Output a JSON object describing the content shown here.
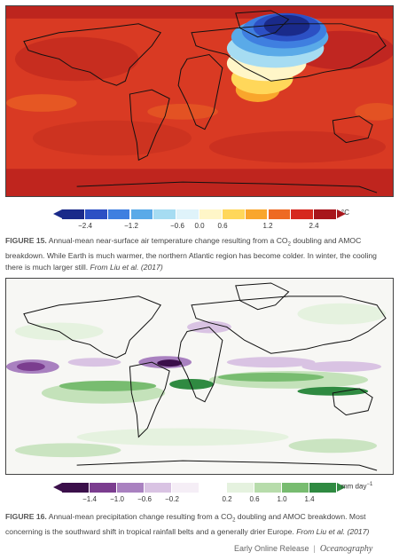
{
  "figure15": {
    "colorbar": {
      "colors": [
        "#1a2a8a",
        "#2c50c4",
        "#3f7fe0",
        "#5aaae8",
        "#a6dcf2",
        "#dff3fa",
        "#fff6c8",
        "#ffd75a",
        "#f9a62c",
        "#ee6a23",
        "#d6281e",
        "#a8161c"
      ],
      "tick_labels": [
        "−2.4",
        "−1.2",
        "−0.6",
        "0.0",
        "0.6",
        "1.2",
        "2.4"
      ],
      "unit": "°C"
    },
    "caption": {
      "label": "FIGURE 15.",
      "text_before_sub": "Annual-mean near-surface air temperature change resulting from a CO",
      "subscript": "2",
      "text_after_sub": " doubling and AMOC breakdown. While Earth is much warmer, the northern Atlantic region has become colder. In winter, the cooling there is much larger still.",
      "source": "From Liu et al. (2017)"
    }
  },
  "figure16": {
    "colorbar": {
      "colors": [
        "#3b0f4a",
        "#7b3d8f",
        "#a981c0",
        "#d9c3e3",
        "#f5eef6",
        "#ffffff",
        "#e5f2df",
        "#b7dcab",
        "#78bc70",
        "#2f8a41"
      ],
      "tick_labels": [
        "−1.4",
        "−1.0",
        "−0.6",
        "−0.2",
        "0.2",
        "0.6",
        "1.0",
        "1.4"
      ],
      "unit_main": "mm day",
      "unit_sup": "−1"
    },
    "caption": {
      "label": "FIGURE 16.",
      "text_before_sub": "Annual-mean precipitation change resulting from a CO",
      "subscript": "2",
      "text_after_sub": " doubling and AMOC breakdown. Most concerning is the southward shift in tropical rainfall belts and a generally drier Europe.",
      "source": "From Liu et al. (2017)"
    }
  },
  "footer": {
    "release": "Early Online Release",
    "journal": "Oceanography"
  }
}
